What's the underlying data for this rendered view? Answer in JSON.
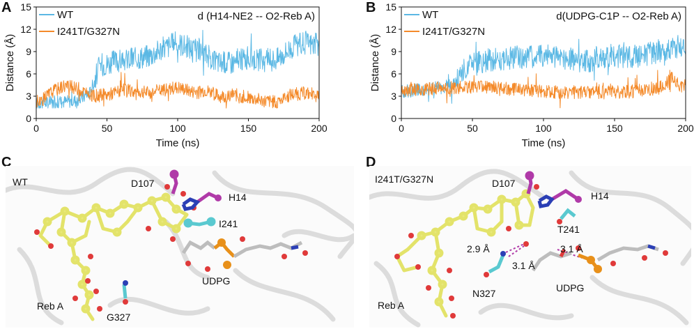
{
  "panels": {
    "a": {
      "letter": "A",
      "chart_data": {
        "type": "line",
        "title": "d (H14-NE2 -- O2-Reb A)",
        "xlabel": "Time (ns)",
        "ylabel": "Distance (Å)",
        "xlim": [
          0,
          200
        ],
        "ylim": [
          0,
          15
        ],
        "xticks": [
          "0",
          "50",
          "100",
          "150",
          "200"
        ],
        "yticks": [
          "0",
          "3",
          "6",
          "9",
          "12",
          "15"
        ],
        "legend_position": "top-left",
        "series": [
          {
            "name": "WT",
            "color": "#5bb8e4",
            "x": [
              0,
              10,
              20,
              30,
              38,
              45,
              60,
              80,
              90,
              100,
              110,
              120,
              130,
              140,
              150,
              160,
              170,
              180,
              190,
              200
            ],
            "values": [
              2,
              2.2,
              2.3,
              2.5,
              3.5,
              7.2,
              7.8,
              8.5,
              9.5,
              10.2,
              9.4,
              8.6,
              7.5,
              7.6,
              8.2,
              7.8,
              8.0,
              9.5,
              10.2,
              9.8
            ]
          },
          {
            "name": "I241T/G327N",
            "color": "#f48a2a",
            "x": [
              0,
              5,
              10,
              20,
              30,
              40,
              50,
              60,
              80,
              100,
              110,
              120,
              130,
              140,
              150,
              160,
              170,
              180,
              190,
              200
            ],
            "values": [
              2.2,
              2.6,
              3.5,
              4.5,
              4.0,
              3.0,
              3.2,
              3.8,
              3.5,
              4.2,
              3.6,
              3.8,
              3.0,
              3.2,
              2.8,
              2.4,
              2.2,
              3.2,
              3.4,
              3.2
            ]
          }
        ]
      }
    },
    "b": {
      "letter": "B",
      "chart_data": {
        "type": "line",
        "title": "d(UDPG-C1P -- O2-Reb A)",
        "xlabel": "Time (ns)",
        "ylabel": "Distance (Å)",
        "xlim": [
          0,
          200
        ],
        "ylim": [
          0,
          15
        ],
        "xticks": [
          "0",
          "50",
          "100",
          "150",
          "200"
        ],
        "yticks": [
          "0",
          "3",
          "6",
          "9",
          "12",
          "15"
        ],
        "legend_position": "top-left",
        "series": [
          {
            "name": "WT",
            "color": "#5bb8e4",
            "x": [
              0,
              10,
              20,
              30,
              38,
              45,
              55,
              65,
              80,
              100,
              120,
              130,
              140,
              150,
              160,
              170,
              180,
              190,
              200
            ],
            "values": [
              3.6,
              3.8,
              4.0,
              4.2,
              4.6,
              6.8,
              7.5,
              8.0,
              8.2,
              8.5,
              8.0,
              7.6,
              8.3,
              8.5,
              8.2,
              8.6,
              9.0,
              9.5,
              9.8
            ]
          },
          {
            "name": "I241T/G327N",
            "color": "#f48a2a",
            "x": [
              0,
              20,
              40,
              60,
              80,
              100,
              120,
              140,
              160,
              180,
              190,
              200
            ],
            "values": [
              3.8,
              4.0,
              4.2,
              4.3,
              3.9,
              3.6,
              3.5,
              3.5,
              3.6,
              4.0,
              5.2,
              4.0
            ]
          }
        ]
      }
    },
    "c": {
      "letter": "C",
      "labels": {
        "variant": "WT",
        "d107": "D107",
        "h14": "H14",
        "i241": "I241",
        "udpg": "UDPG",
        "reb_a": "Reb A",
        "g327": "G327"
      }
    },
    "d": {
      "letter": "D",
      "labels": {
        "variant": "I241T/G327N",
        "d107": "D107",
        "h14": "H14",
        "t241": "T241",
        "dist1": "2.9 Å",
        "dist2": "3.1 Å",
        "dist3": "3.1 Å",
        "n327": "N327",
        "udpg": "UDPG",
        "reb_a": "Reb A"
      }
    }
  }
}
